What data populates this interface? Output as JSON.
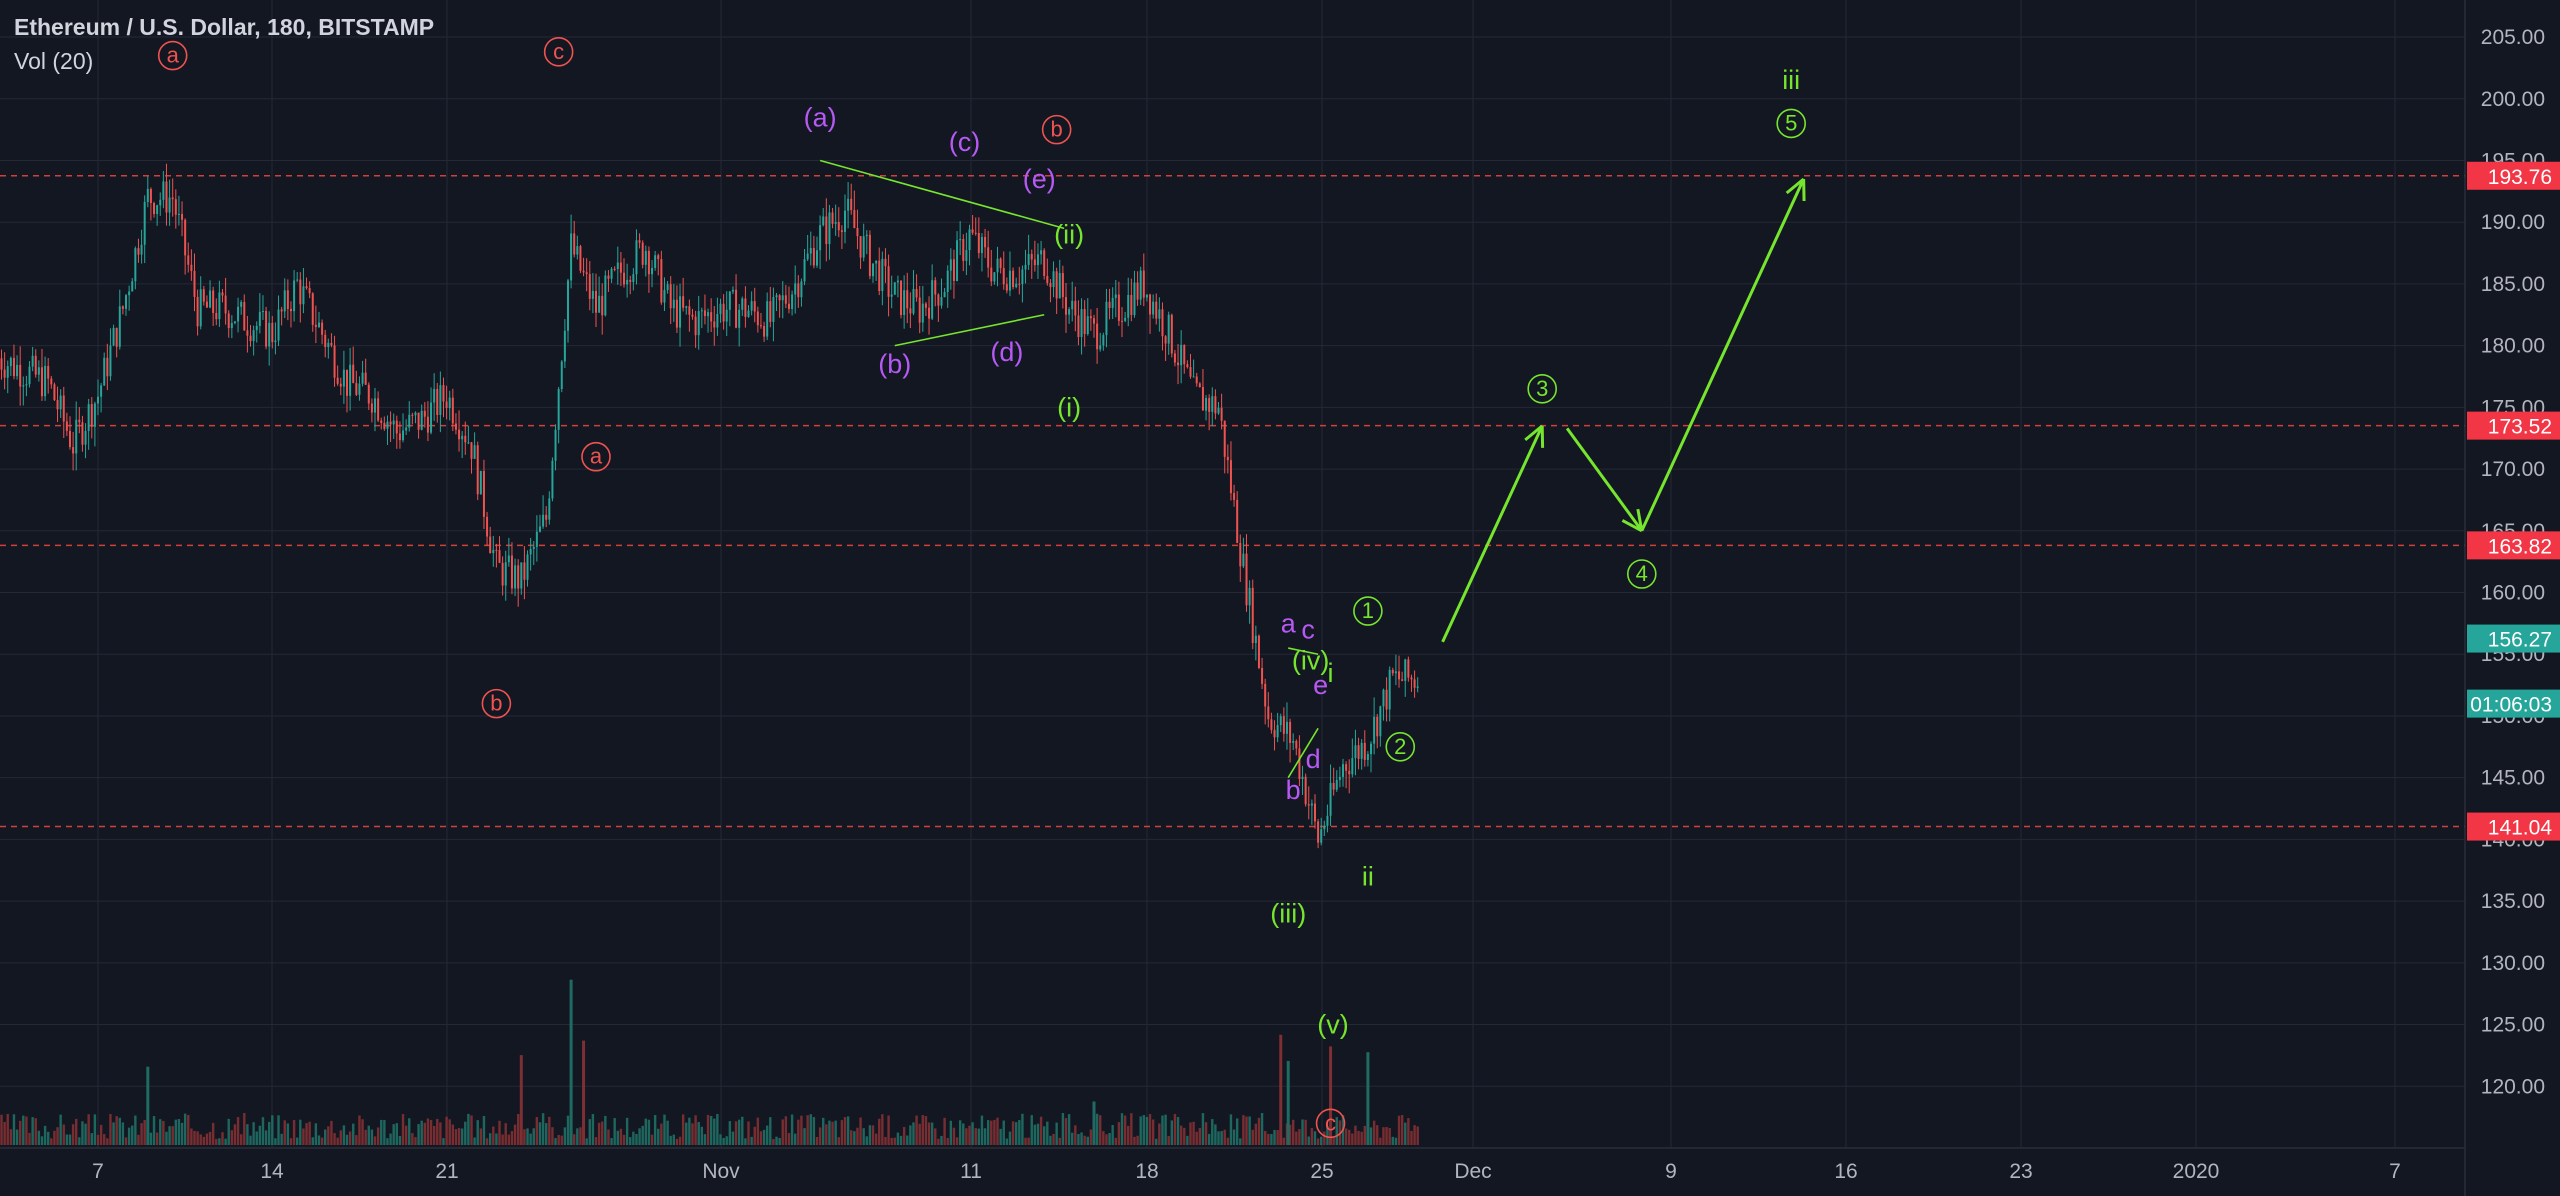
{
  "header": {
    "title": "Ethereum / U.S. Dollar, 180, BITSTAMP",
    "volume_indicator": "Vol (20)"
  },
  "colors": {
    "background": "#131722",
    "grid": "#252936",
    "up": "#26a69a",
    "down": "#ef5350",
    "impulse_green": "#76e52e",
    "correction_purple": "#b659f5",
    "wave_red": "#ef5350",
    "level_line": "#d3403a",
    "axis_text": "#b2b5be"
  },
  "chart_data": {
    "type": "candlestick",
    "symbol": "ETHUSD",
    "interval": "180",
    "exchange": "BITSTAMP",
    "ylim": [
      115,
      208
    ],
    "y_ticks": [
      "205.00",
      "200.00",
      "195.00",
      "190.00",
      "185.00",
      "180.00",
      "175.00",
      "170.00",
      "165.00",
      "160.00",
      "155.00",
      "150.00",
      "145.00",
      "140.00",
      "135.00",
      "130.00",
      "125.00",
      "120.00"
    ],
    "x_ticks": [
      "7",
      "14",
      "21",
      "Nov",
      "11",
      "18",
      "25",
      "Dec",
      "9",
      "16",
      "23",
      "2020",
      "7"
    ],
    "price_path": [
      {
        "date": "Oct 3",
        "price": 179
      },
      {
        "date": "Oct 5",
        "price": 177
      },
      {
        "date": "Oct 6",
        "price": 172
      },
      {
        "date": "Oct 7",
        "price": 176
      },
      {
        "date": "Oct 8",
        "price": 183
      },
      {
        "date": "Oct 9",
        "price": 192
      },
      {
        "date": "Oct 10",
        "price": 192
      },
      {
        "date": "Oct 11",
        "price": 183
      },
      {
        "date": "Oct 12",
        "price": 183
      },
      {
        "date": "Oct 13",
        "price": 182
      },
      {
        "date": "Oct 14",
        "price": 181
      },
      {
        "date": "Oct 15",
        "price": 185
      },
      {
        "date": "Oct 16",
        "price": 181
      },
      {
        "date": "Oct 17",
        "price": 177
      },
      {
        "date": "Oct 18",
        "price": 176
      },
      {
        "date": "Oct 19",
        "price": 173
      },
      {
        "date": "Oct 20",
        "price": 174
      },
      {
        "date": "Oct 21",
        "price": 176
      },
      {
        "date": "Oct 22",
        "price": 172
      },
      {
        "date": "Oct 23",
        "price": 162
      },
      {
        "date": "Oct 24",
        "price": 161
      },
      {
        "date": "Oct 25",
        "price": 166
      },
      {
        "date": "Oct 26",
        "price": 188
      },
      {
        "date": "Oct 27",
        "price": 183
      },
      {
        "date": "Oct 28",
        "price": 186
      },
      {
        "date": "Oct 29",
        "price": 188
      },
      {
        "date": "Oct 30",
        "price": 183
      },
      {
        "date": "Oct 31",
        "price": 182
      },
      {
        "date": "Nov 1",
        "price": 183
      },
      {
        "date": "Nov 2",
        "price": 183
      },
      {
        "date": "Nov 3",
        "price": 182
      },
      {
        "date": "Nov 4",
        "price": 185
      },
      {
        "date": "Nov 5",
        "price": 189
      },
      {
        "date": "Nov 6",
        "price": 191
      },
      {
        "date": "Nov 7",
        "price": 187
      },
      {
        "date": "Nov 8",
        "price": 184
      },
      {
        "date": "Nov 9",
        "price": 183
      },
      {
        "date": "Nov 10",
        "price": 185
      },
      {
        "date": "Nov 11",
        "price": 189
      },
      {
        "date": "Nov 12",
        "price": 186
      },
      {
        "date": "Nov 13",
        "price": 186
      },
      {
        "date": "Nov 14",
        "price": 187
      },
      {
        "date": "Nov 15",
        "price": 183
      },
      {
        "date": "Nov 16",
        "price": 181
      },
      {
        "date": "Nov 17",
        "price": 183
      },
      {
        "date": "Nov 18",
        "price": 185
      },
      {
        "date": "Nov 19",
        "price": 181
      },
      {
        "date": "Nov 20",
        "price": 176
      },
      {
        "date": "Nov 21",
        "price": 175
      },
      {
        "date": "Nov 22",
        "price": 162
      },
      {
        "date": "Nov 23",
        "price": 150
      },
      {
        "date": "Nov 24",
        "price": 148
      },
      {
        "date": "Nov 25",
        "price": 140
      },
      {
        "date": "Nov 26",
        "price": 146
      },
      {
        "date": "Nov 27",
        "price": 148
      },
      {
        "date": "Nov 28",
        "price": 153
      },
      {
        "date": "Nov 29",
        "price": 153
      }
    ],
    "horizontal_levels": [
      193.76,
      173.52,
      163.82,
      141.04
    ],
    "badges": [
      {
        "label": "193.76",
        "value": 193.76,
        "color": "#f23645"
      },
      {
        "label": "173.52",
        "value": 173.52,
        "color": "#f23645"
      },
      {
        "label": "163.82",
        "value": 163.82,
        "color": "#f23645"
      },
      {
        "label": "156.27",
        "value": 156.27,
        "color": "#26a69a"
      },
      {
        "label": "01:06:03",
        "value": 151.0,
        "color": "#26a69a"
      },
      {
        "label": "141.04",
        "value": 141.04,
        "color": "#f23645"
      }
    ],
    "wave_labels": [
      {
        "text": "a",
        "circled": true,
        "date": "Oct 10",
        "price": 203.5,
        "color": "#ef5350"
      },
      {
        "text": "c",
        "circled": true,
        "date": "Oct 25.5",
        "price": 203.8,
        "color": "#ef5350"
      },
      {
        "text": "a",
        "circled": true,
        "date": "Oct 27",
        "price": 171,
        "color": "#ef5350"
      },
      {
        "text": "b",
        "circled": true,
        "date": "Oct 23",
        "price": 151,
        "color": "#ef5350"
      },
      {
        "text": "b",
        "circled": true,
        "date": "Nov 14.5",
        "price": 197.5,
        "color": "#ef5350"
      },
      {
        "text": "c",
        "circled": true,
        "date": "Nov 25.5",
        "price": 117,
        "color": "#ef5350"
      },
      {
        "text": "(a)",
        "circled": false,
        "date": "Nov 5",
        "price": 198.5,
        "color": "#b659f5"
      },
      {
        "text": "(b)",
        "circled": false,
        "date": "Nov 8",
        "price": 178.5,
        "color": "#b659f5"
      },
      {
        "text": "(c)",
        "circled": false,
        "date": "Nov 10.8",
        "price": 196.5,
        "color": "#b659f5"
      },
      {
        "text": "(d)",
        "circled": false,
        "date": "Nov 12.5",
        "price": 179.5,
        "color": "#b659f5"
      },
      {
        "text": "(e)",
        "circled": false,
        "date": "Nov 13.8",
        "price": 193.5,
        "color": "#b659f5"
      },
      {
        "text": "(ii)",
        "circled": false,
        "date": "Nov 15",
        "price": 189,
        "color": "#76e52e"
      },
      {
        "text": "(i)",
        "circled": false,
        "date": "Nov 15",
        "price": 175,
        "color": "#76e52e"
      },
      {
        "text": "(iii)",
        "circled": false,
        "date": "Nov 23.8",
        "price": 134,
        "color": "#76e52e"
      },
      {
        "text": "(iv)",
        "circled": false,
        "date": "Nov 24.7",
        "price": 154.5,
        "color": "#76e52e"
      },
      {
        "text": "(v)",
        "circled": false,
        "date": "Nov 25.6",
        "price": 125,
        "color": "#76e52e"
      },
      {
        "text": "a",
        "circled": false,
        "date": "Nov 23.8",
        "price": 157.5,
        "color": "#b659f5"
      },
      {
        "text": "b",
        "circled": false,
        "date": "Nov 24",
        "price": 144,
        "color": "#b659f5"
      },
      {
        "text": "c",
        "circled": false,
        "date": "Nov 24.6",
        "price": 157,
        "color": "#b659f5"
      },
      {
        "text": "d",
        "circled": false,
        "date": "Nov 24.8",
        "price": 146.5,
        "color": "#b659f5"
      },
      {
        "text": "e",
        "circled": false,
        "date": "Nov 25.1",
        "price": 152.5,
        "color": "#b659f5"
      },
      {
        "text": "i",
        "circled": false,
        "date": "Nov 25.5",
        "price": 153.5,
        "color": "#76e52e"
      },
      {
        "text": "ii",
        "circled": false,
        "date": "Nov 27",
        "price": 137,
        "color": "#76e52e"
      },
      {
        "text": "1",
        "circled": true,
        "date": "Nov 27",
        "price": 158.5,
        "color": "#76e52e"
      },
      {
        "text": "2",
        "circled": true,
        "date": "Nov 28.3",
        "price": 147.5,
        "color": "#76e52e"
      },
      {
        "text": "3",
        "circled": true,
        "date": "Dec 4",
        "price": 176.5,
        "color": "#76e52e"
      },
      {
        "text": "4",
        "circled": true,
        "date": "Dec 8",
        "price": 161.5,
        "color": "#76e52e"
      },
      {
        "text": "5",
        "circled": true,
        "date": "Dec 14",
        "price": 198,
        "color": "#76e52e"
      },
      {
        "text": "iii",
        "circled": false,
        "date": "Dec 14",
        "price": 201.5,
        "color": "#76e52e"
      }
    ],
    "projection_path": [
      {
        "date": "Nov 30",
        "price": 156
      },
      {
        "date": "Dec 4",
        "price": 173.5
      },
      {
        "date": "Dec 5",
        "price": 173.3
      },
      {
        "date": "Dec 8",
        "price": 165
      },
      {
        "date": "Dec 14.5",
        "price": 193.5
      }
    ],
    "triangle_lines": [
      [
        {
          "date": "Nov 5",
          "price": 195
        },
        {
          "date": "Nov 14.8",
          "price": 189.5
        }
      ],
      [
        {
          "date": "Nov 8",
          "price": 180
        },
        {
          "date": "Nov 14",
          "price": 182.5
        }
      ],
      [
        {
          "date": "Nov 23.8",
          "price": 155.5
        },
        {
          "date": "Nov 25",
          "price": 155
        }
      ],
      [
        {
          "date": "Nov 23.8",
          "price": 145
        },
        {
          "date": "Nov 25",
          "price": 149
        }
      ]
    ],
    "volume_spikes": [
      {
        "date": "Oct 9",
        "height": 0.27
      },
      {
        "date": "Oct 24",
        "height": 0.31
      },
      {
        "date": "Oct 26",
        "height": 0.57
      },
      {
        "date": "Oct 26.5",
        "height": 0.36
      },
      {
        "date": "Nov 16",
        "height": 0.15
      },
      {
        "date": "Nov 23.5",
        "height": 0.38
      },
      {
        "date": "Nov 23.8",
        "height": 0.29
      },
      {
        "date": "Nov 25.5",
        "height": 0.34
      },
      {
        "date": "Nov 27",
        "height": 0.32
      }
    ]
  }
}
